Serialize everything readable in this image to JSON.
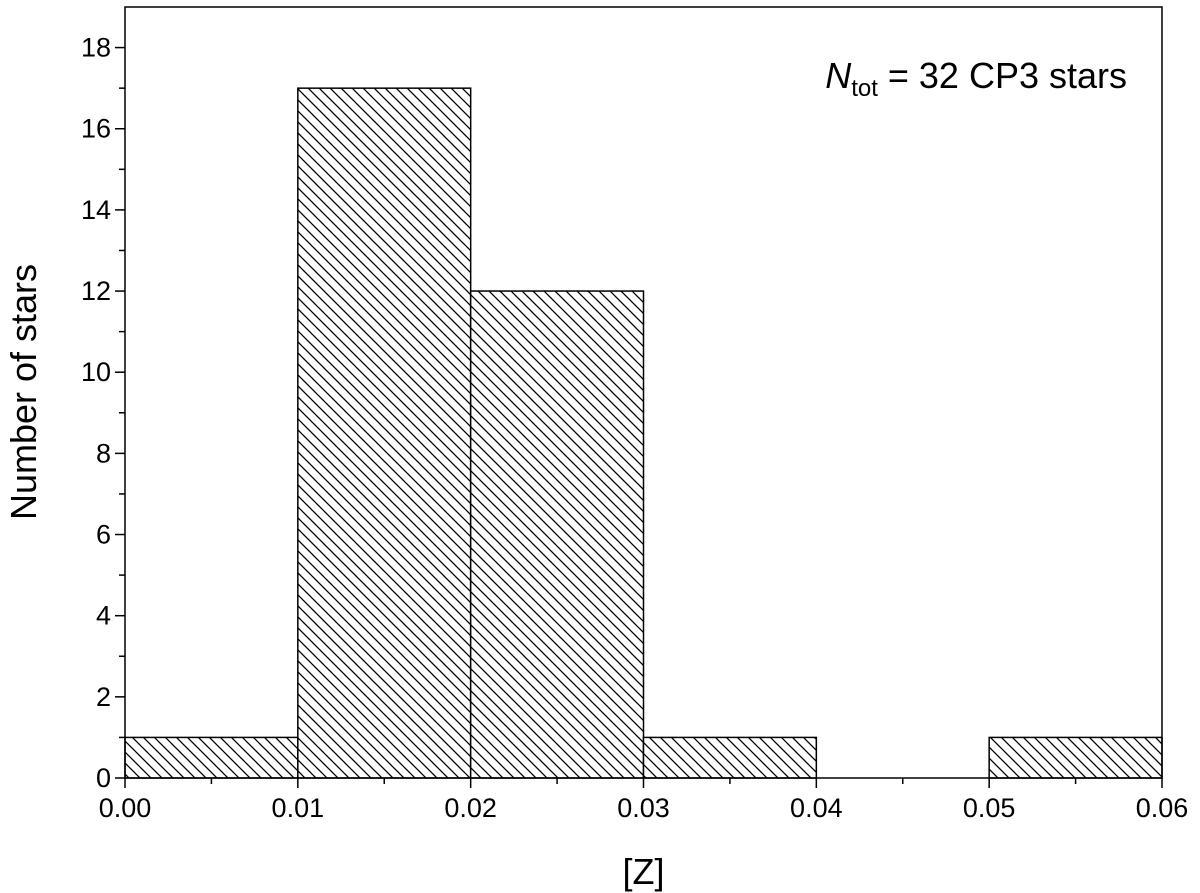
{
  "chart_data": {
    "type": "bar",
    "title": "",
    "xlabel": "[Z]",
    "ylabel": "Number of stars",
    "bins": [
      {
        "start": 0.0,
        "end": 0.01,
        "count": 1,
        "hatch": "back"
      },
      {
        "start": 0.01,
        "end": 0.02,
        "count": 17,
        "hatch": "back"
      },
      {
        "start": 0.02,
        "end": 0.03,
        "count": 12,
        "hatch": "back"
      },
      {
        "start": 0.03,
        "end": 0.04,
        "count": 1,
        "hatch": "back"
      },
      {
        "start": 0.04,
        "end": 0.05,
        "count": 0,
        "hatch": "back"
      },
      {
        "start": 0.05,
        "end": 0.06,
        "count": 1,
        "hatch": "back"
      }
    ],
    "xlim": [
      0.0,
      0.06
    ],
    "ylim": [
      0,
      19
    ],
    "xticks": [
      "0.00",
      "0.01",
      "0.02",
      "0.03",
      "0.04",
      "0.05",
      "0.06"
    ],
    "xtick_values": [
      0.0,
      0.01,
      0.02,
      0.03,
      0.04,
      0.05,
      0.06
    ],
    "yticks": [
      "0",
      "2",
      "4",
      "6",
      "8",
      "10",
      "12",
      "14",
      "16",
      "18"
    ],
    "ytick_values": [
      0,
      2,
      4,
      6,
      8,
      10,
      12,
      14,
      16,
      18
    ],
    "grid": false,
    "annotation": {
      "symbol": "N",
      "subscript": "tot",
      "text": " = 32 CP3 stars",
      "placement": "top-right"
    },
    "colors": {
      "bar_fill": "#ffffff",
      "hatch": "#000000",
      "axis": "#000000"
    }
  }
}
